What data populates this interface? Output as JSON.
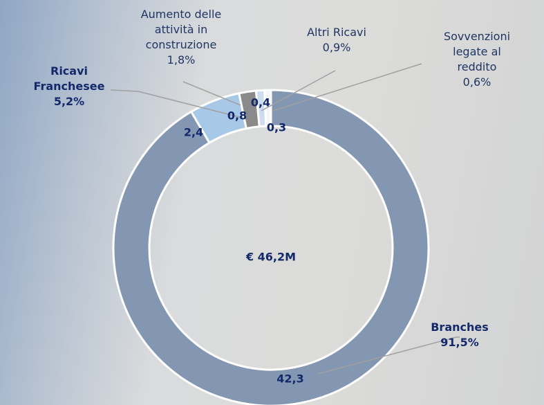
{
  "chart_data": {
    "type": "pie",
    "donut": true,
    "center_label": "€ 46,2M",
    "categories": [
      "Branches",
      "Ricavi Franchesee",
      "Aumento delle attività in construzione",
      "Altri Ricavi",
      "Sovvenzioni legate al reddito"
    ],
    "values": [
      42.3,
      2.4,
      0.8,
      0.4,
      0.3
    ],
    "value_labels": [
      "42,3",
      "2,4",
      "0,8",
      "0,4",
      "0,3"
    ],
    "shares": [
      91.5,
      5.2,
      1.8,
      0.9,
      0.6
    ],
    "share_labels": [
      "91,5%",
      "5,2%",
      "1,8%",
      "0,9%",
      "0,6%"
    ],
    "colors": [
      "#8397b2",
      "#a8c8e8",
      "#8a8a8a",
      "#cddcef",
      "#f4f6f9"
    ]
  }
}
